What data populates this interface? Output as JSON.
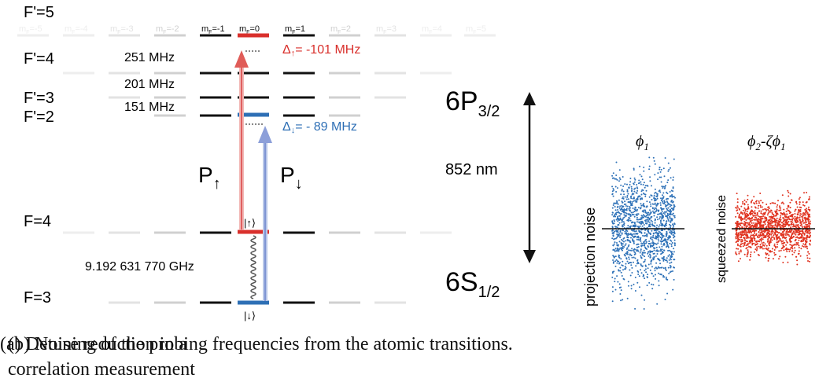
{
  "panel_a": {
    "levels": {
      "f5": "F'=5",
      "f4p": "F'=4",
      "f3p": "F'=3",
      "f2p": "F'=2",
      "f4": "F=4",
      "f3": "F=3"
    },
    "mf_labels": [
      "m",
      "m",
      "m",
      "m",
      "m",
      "m",
      "m",
      "m",
      "m",
      "m",
      "m"
    ],
    "mf_values": [
      "-5",
      "-4",
      "-3",
      "-2",
      "-1",
      "0",
      "1",
      "2",
      "3",
      "4",
      "5"
    ],
    "mf_sub": "F",
    "splittings": {
      "s251": "251 MHz",
      "s201": "201 MHz",
      "s151": "151 MHz",
      "ground": "9.192 631 770 GHz"
    },
    "detuning_up": {
      "symbol": "Δ",
      "sub": "↑",
      "text": "= -101 MHz",
      "color": "#d9302c"
    },
    "detuning_down": {
      "symbol": "Δ",
      "sub": "↓",
      "text": "= - 89 MHz",
      "color": "#2e6fb5"
    },
    "probe_up": {
      "letter": "P",
      "sub": "↑"
    },
    "probe_down": {
      "letter": "P",
      "sub": "↓"
    },
    "state_up": "|↑⟩",
    "state_down": "|↓⟩",
    "excited": {
      "main": "6P",
      "sub": "3/2"
    },
    "ground": {
      "main": "6S",
      "sub": "1/2"
    },
    "wavelength": "852 nm"
  },
  "panel_b": {
    "left": {
      "title": "ϕ",
      "title_sub": "1",
      "ylabel": "projection noise",
      "color": "#2f72b8"
    },
    "right": {
      "title": "ϕ",
      "title_sub": "2",
      "title_rest": "-ζϕ",
      "title_sub2": "1",
      "ylabel": "squeezed noise",
      "color": "#e0321f"
    }
  },
  "captions": {
    "a": "(a) Detuning of the probing frequencies from the atomic transitions.",
    "b": "(b) Noise reduction in a correlation measurement"
  }
}
